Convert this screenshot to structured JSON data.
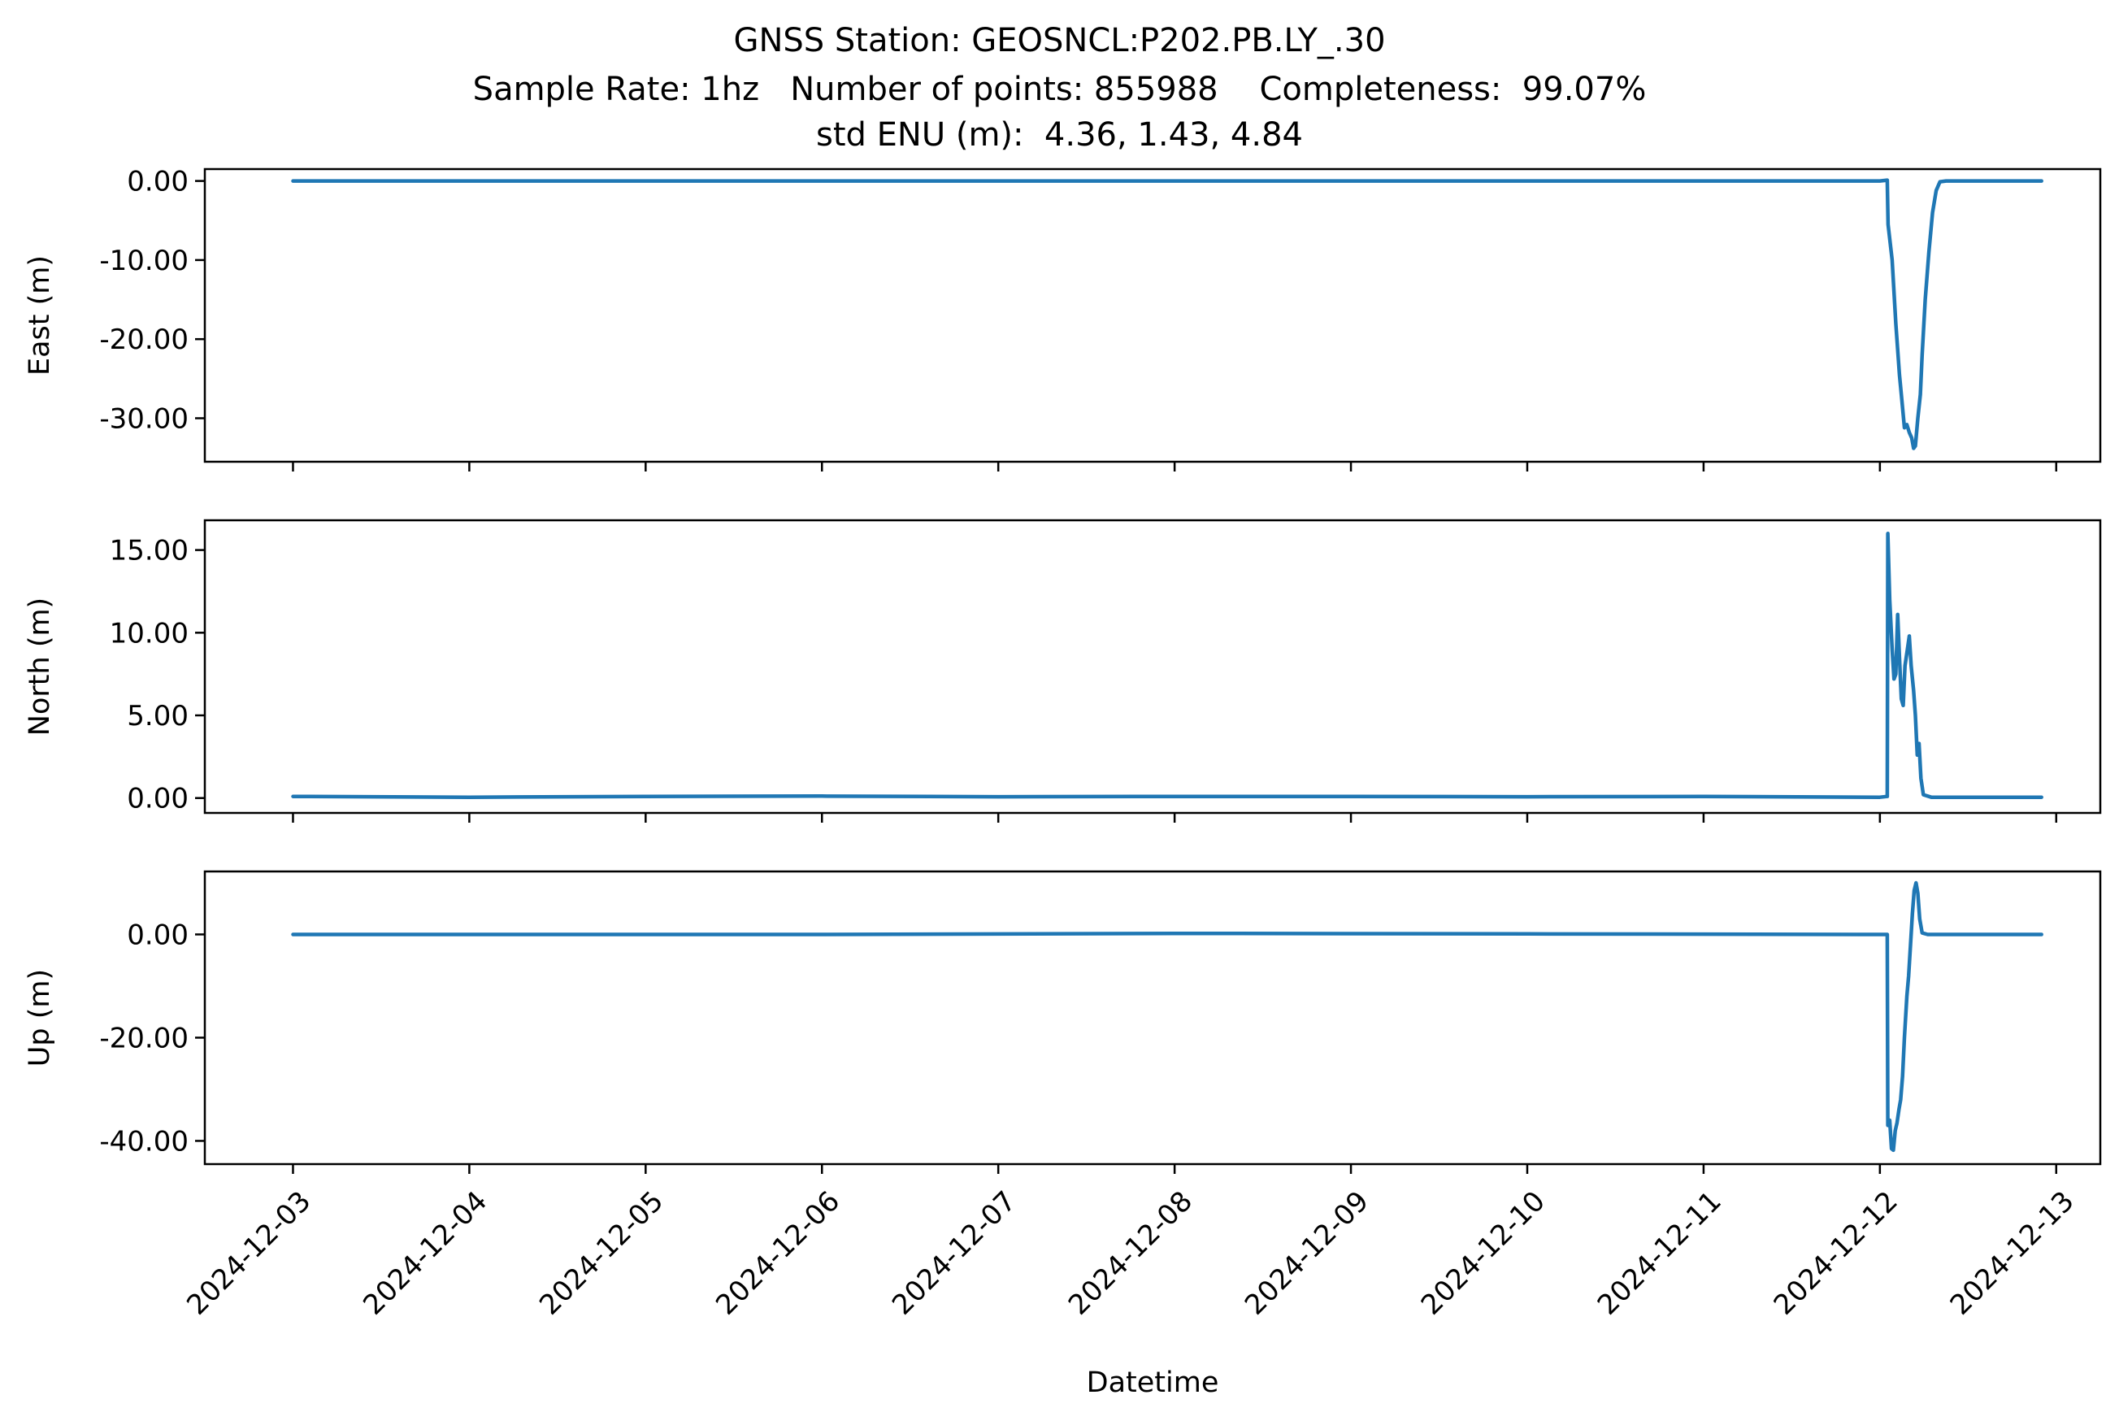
{
  "figure": {
    "title_lines": [
      "GNSS Station: GEOSNCL:P202.PB.LY_.30",
      "Sample Rate: 1hz   Number of points: 855988    Completeness:  99.07%",
      "std ENU (m):  4.36, 1.43, 4.84"
    ],
    "xlabel": "Datetime",
    "line_color": "#1f77b4"
  },
  "chart_data": [
    {
      "type": "line",
      "ylabel": "East (m)",
      "x_ticks": [
        "2024-12-03",
        "2024-12-04",
        "2024-12-05",
        "2024-12-06",
        "2024-12-07",
        "2024-12-08",
        "2024-12-09",
        "2024-12-10",
        "2024-12-11",
        "2024-12-12",
        "2024-12-13"
      ],
      "x_tick_labels_visible": false,
      "x_range_days": [
        "2024-12-02T12:00",
        "2024-12-13T06:00"
      ],
      "y_ticks": [
        0,
        -10,
        -20,
        -30
      ],
      "y_tick_labels": [
        "0.00",
        "-10.00",
        "-20.00",
        "-30.00"
      ],
      "ylim": [
        -35.5,
        1.5
      ],
      "series": [
        {
          "points": [
            [
              "2024-12-03T00:00",
              0
            ],
            [
              "2024-12-06T00:00",
              0
            ],
            [
              "2024-12-09T00:00",
              0
            ],
            [
              "2024-12-12T00:00",
              0
            ],
            [
              "2024-12-12T01:00",
              0.1
            ],
            [
              "2024-12-12T01:07",
              -5.5
            ],
            [
              "2024-12-12T01:40",
              -10
            ],
            [
              "2024-12-12T02:10",
              -18
            ],
            [
              "2024-12-12T02:40",
              -24.5
            ],
            [
              "2024-12-12T02:55",
              -27
            ],
            [
              "2024-12-12T03:20",
              -31.2
            ],
            [
              "2024-12-12T03:40",
              -30.8
            ],
            [
              "2024-12-12T04:00",
              -31.8
            ],
            [
              "2024-12-12T04:20",
              -32.5
            ],
            [
              "2024-12-12T04:35",
              -33.8
            ],
            [
              "2024-12-12T04:50",
              -33.5
            ],
            [
              "2024-12-12T05:10",
              -30
            ],
            [
              "2024-12-12T05:30",
              -27
            ],
            [
              "2024-12-12T05:45",
              -22
            ],
            [
              "2024-12-12T06:10",
              -15
            ],
            [
              "2024-12-12T06:40",
              -9
            ],
            [
              "2024-12-12T07:10",
              -4
            ],
            [
              "2024-12-12T07:40",
              -1.2
            ],
            [
              "2024-12-12T08:10",
              -0.1
            ],
            [
              "2024-12-12T09:00",
              0
            ],
            [
              "2024-12-12T22:00",
              0
            ]
          ]
        }
      ]
    },
    {
      "type": "line",
      "ylabel": "North (m)",
      "x_ticks": [
        "2024-12-03",
        "2024-12-04",
        "2024-12-05",
        "2024-12-06",
        "2024-12-07",
        "2024-12-08",
        "2024-12-09",
        "2024-12-10",
        "2024-12-11",
        "2024-12-12",
        "2024-12-13"
      ],
      "x_tick_labels_visible": false,
      "x_range_days": [
        "2024-12-02T12:00",
        "2024-12-13T06:00"
      ],
      "y_ticks": [
        0,
        5,
        10,
        15
      ],
      "y_tick_labels": [
        "0.00",
        "5.00",
        "10.00",
        "15.00"
      ],
      "ylim": [
        -0.9,
        16.8
      ],
      "series": [
        {
          "points": [
            [
              "2024-12-03T00:00",
              0.1
            ],
            [
              "2024-12-04T00:00",
              0.05
            ],
            [
              "2024-12-05T00:00",
              0.1
            ],
            [
              "2024-12-06T00:00",
              0.12
            ],
            [
              "2024-12-07T00:00",
              0.08
            ],
            [
              "2024-12-08T00:00",
              0.1
            ],
            [
              "2024-12-09T00:00",
              0.1
            ],
            [
              "2024-12-10T00:00",
              0.08
            ],
            [
              "2024-12-11T00:00",
              0.1
            ],
            [
              "2024-12-12T00:00",
              0.05
            ],
            [
              "2024-12-12T01:00",
              0.1
            ],
            [
              "2024-12-12T01:05",
              16.0
            ],
            [
              "2024-12-12T01:20",
              12.0
            ],
            [
              "2024-12-12T01:40",
              9.0
            ],
            [
              "2024-12-12T01:55",
              7.2
            ],
            [
              "2024-12-12T02:10",
              7.5
            ],
            [
              "2024-12-12T02:25",
              11.1
            ],
            [
              "2024-12-12T02:40",
              8.5
            ],
            [
              "2024-12-12T02:55",
              6.0
            ],
            [
              "2024-12-12T03:10",
              5.6
            ],
            [
              "2024-12-12T03:25",
              8.0
            ],
            [
              "2024-12-12T03:45",
              9.0
            ],
            [
              "2024-12-12T04:00",
              9.8
            ],
            [
              "2024-12-12T04:15",
              8.0
            ],
            [
              "2024-12-12T04:35",
              6.5
            ],
            [
              "2024-12-12T04:50",
              5.0
            ],
            [
              "2024-12-12T05:05",
              2.6
            ],
            [
              "2024-12-12T05:20",
              3.3
            ],
            [
              "2024-12-12T05:35",
              1.2
            ],
            [
              "2024-12-12T05:55",
              0.2
            ],
            [
              "2024-12-12T07:00",
              0.05
            ],
            [
              "2024-12-12T22:00",
              0.05
            ]
          ]
        }
      ]
    },
    {
      "type": "line",
      "ylabel": "Up (m)",
      "x_ticks": [
        "2024-12-03",
        "2024-12-04",
        "2024-12-05",
        "2024-12-06",
        "2024-12-07",
        "2024-12-08",
        "2024-12-09",
        "2024-12-10",
        "2024-12-11",
        "2024-12-12",
        "2024-12-13"
      ],
      "x_tick_labels_visible": true,
      "x_range_days": [
        "2024-12-02T12:00",
        "2024-12-13T06:00"
      ],
      "y_ticks": [
        0,
        -20,
        -40
      ],
      "y_tick_labels": [
        "0.00",
        "-20.00",
        "-40.00"
      ],
      "ylim": [
        -44.5,
        12.2
      ],
      "series": [
        {
          "points": [
            [
              "2024-12-03T00:00",
              0
            ],
            [
              "2024-12-06T00:00",
              0
            ],
            [
              "2024-12-08T00:00",
              0.2
            ],
            [
              "2024-12-10T00:00",
              0.1
            ],
            [
              "2024-12-12T00:00",
              0
            ],
            [
              "2024-12-12T01:00",
              0
            ],
            [
              "2024-12-12T01:05",
              -37
            ],
            [
              "2024-12-12T01:20",
              -36
            ],
            [
              "2024-12-12T01:35",
              -41.5
            ],
            [
              "2024-12-12T01:50",
              -41.8
            ],
            [
              "2024-12-12T02:05",
              -38
            ],
            [
              "2024-12-12T02:20",
              -36.5
            ],
            [
              "2024-12-12T02:35",
              -34
            ],
            [
              "2024-12-12T02:50",
              -32
            ],
            [
              "2024-12-12T03:05",
              -27.5
            ],
            [
              "2024-12-12T03:20",
              -20
            ],
            [
              "2024-12-12T03:40",
              -12
            ],
            [
              "2024-12-12T03:55",
              -8
            ],
            [
              "2024-12-12T04:10",
              -2
            ],
            [
              "2024-12-12T04:25",
              4
            ],
            [
              "2024-12-12T04:40",
              8.5
            ],
            [
              "2024-12-12T04:55",
              10
            ],
            [
              "2024-12-12T05:10",
              8
            ],
            [
              "2024-12-12T05:25",
              3
            ],
            [
              "2024-12-12T05:45",
              0.3
            ],
            [
              "2024-12-12T06:30",
              0
            ],
            [
              "2024-12-12T22:00",
              0
            ]
          ]
        }
      ]
    }
  ]
}
